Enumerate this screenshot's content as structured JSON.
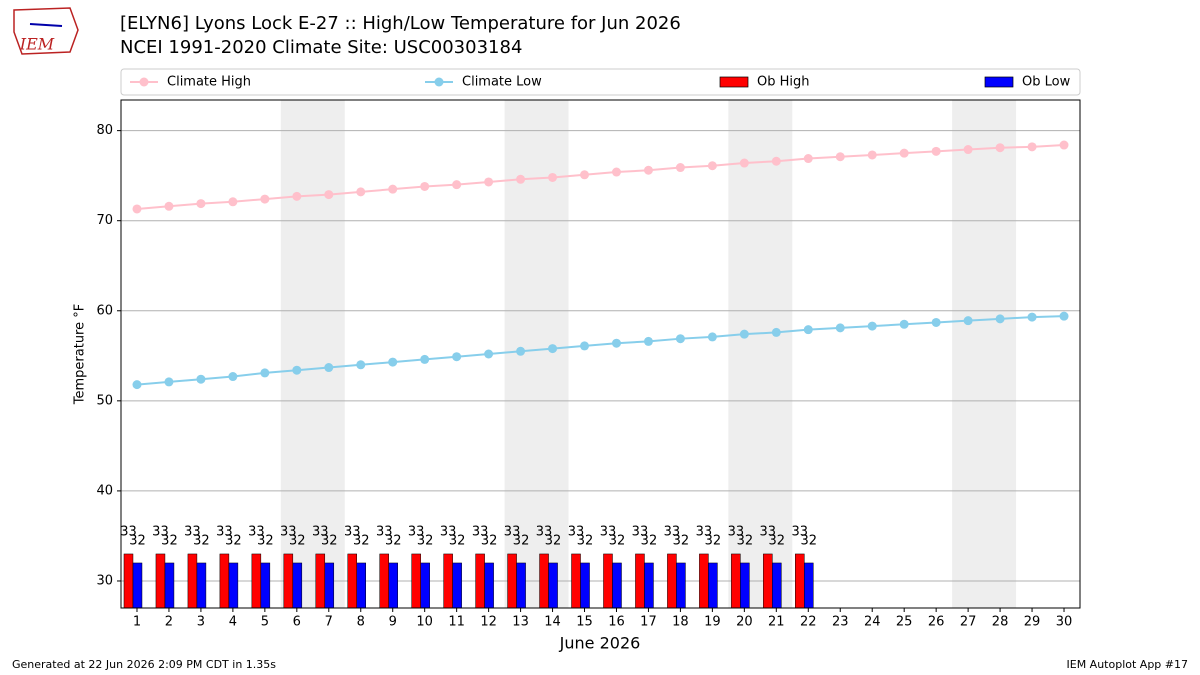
{
  "chart_data": {
    "type": "line_bar",
    "title": "[ELYN6] Lyons Lock E-27 :: High/Low Temperature for Jun 2026",
    "subtitle": "NCEI 1991-2020 Climate Site: USC00303184",
    "logo_text": "IEM",
    "xlabel": "June 2026",
    "ylabel": "Temperature °F",
    "footer_left": "Generated at 22 Jun 2026 2:09 PM CDT in 1.35s",
    "footer_right": "IEM Autoplot App #17",
    "x": [
      1,
      2,
      3,
      4,
      5,
      6,
      7,
      8,
      9,
      10,
      11,
      12,
      13,
      14,
      15,
      16,
      17,
      18,
      19,
      20,
      21,
      22,
      23,
      24,
      25,
      26,
      27,
      28,
      29,
      30
    ],
    "xlim": [
      0.5,
      30.5
    ],
    "xticks": [
      1,
      2,
      3,
      4,
      5,
      6,
      7,
      8,
      9,
      10,
      11,
      12,
      13,
      14,
      15,
      16,
      17,
      18,
      19,
      20,
      21,
      22,
      23,
      24,
      25,
      26,
      27,
      28,
      29,
      30
    ],
    "ylim": [
      27,
      83.4
    ],
    "yticks": [
      30,
      40,
      50,
      60,
      70,
      80
    ],
    "grid": true,
    "weekend_spans": [
      [
        6,
        7
      ],
      [
        13,
        14
      ],
      [
        20,
        21
      ],
      [
        27,
        28
      ]
    ],
    "series": [
      {
        "name": "Climate High",
        "kind": "line",
        "color": "#ffc0cb",
        "values": [
          71.3,
          71.6,
          71.9,
          72.1,
          72.4,
          72.7,
          72.9,
          73.2,
          73.5,
          73.8,
          74.0,
          74.3,
          74.6,
          74.8,
          75.1,
          75.4,
          75.6,
          75.9,
          76.1,
          76.4,
          76.6,
          76.9,
          77.1,
          77.3,
          77.5,
          77.7,
          77.9,
          78.1,
          78.2,
          78.4
        ]
      },
      {
        "name": "Climate Low",
        "kind": "line",
        "color": "#87ceeb",
        "values": [
          51.8,
          52.1,
          52.4,
          52.7,
          53.1,
          53.4,
          53.7,
          54.0,
          54.3,
          54.6,
          54.9,
          55.2,
          55.5,
          55.8,
          56.1,
          56.4,
          56.6,
          56.9,
          57.1,
          57.4,
          57.6,
          57.9,
          58.1,
          58.3,
          58.5,
          58.7,
          58.9,
          59.1,
          59.3,
          59.4
        ]
      },
      {
        "name": "Ob High",
        "kind": "bar",
        "color": "#ff0000",
        "values": [
          33,
          33,
          33,
          33,
          33,
          33,
          33,
          33,
          33,
          33,
          33,
          33,
          33,
          33,
          33,
          33,
          33,
          33,
          33,
          33,
          33,
          33,
          null,
          null,
          null,
          null,
          null,
          null,
          null,
          null
        ]
      },
      {
        "name": "Ob Low",
        "kind": "bar",
        "color": "#0000ff",
        "values": [
          32,
          32,
          32,
          32,
          32,
          32,
          32,
          32,
          32,
          32,
          32,
          32,
          32,
          32,
          32,
          32,
          32,
          32,
          32,
          32,
          32,
          32,
          null,
          null,
          null,
          null,
          null,
          null,
          null,
          null
        ]
      }
    ]
  }
}
